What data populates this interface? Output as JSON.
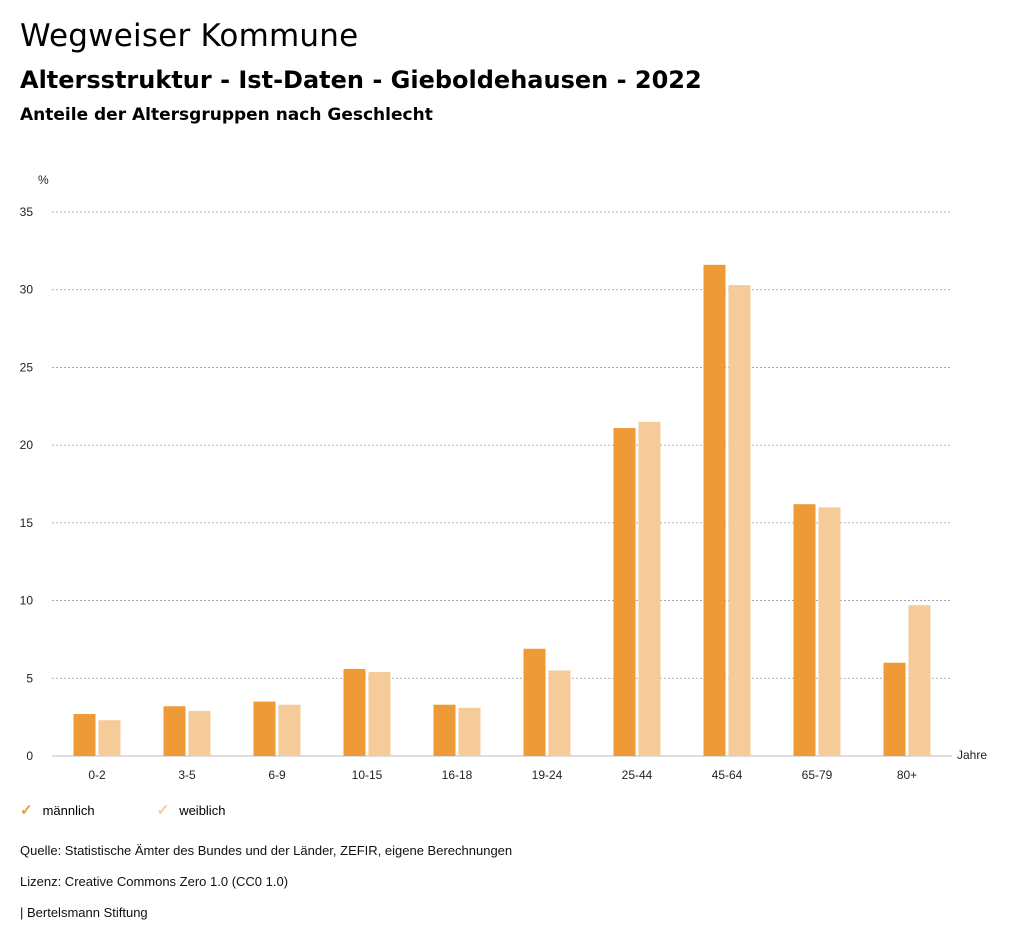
{
  "header": {
    "title": "Wegweiser Kommune",
    "subtitle": "Altersstruktur - Ist-Daten - Gieboldehausen - 2022",
    "description": "Anteile der Altersgruppen nach Geschlecht"
  },
  "chart_data": {
    "type": "bar",
    "ylabel": "%",
    "xlabel": "Jahre",
    "ylim": [
      0,
      35
    ],
    "yticks": [
      0,
      5,
      10,
      15,
      20,
      25,
      30,
      35
    ],
    "grid": true,
    "legend_position": "bottom-left",
    "categories": [
      "0-2",
      "3-5",
      "6-9",
      "10-15",
      "16-18",
      "19-24",
      "25-44",
      "45-64",
      "65-79",
      "80+"
    ],
    "series": [
      {
        "name": "männlich",
        "color": "#ED9A37",
        "values": [
          2.7,
          3.2,
          3.5,
          5.6,
          3.3,
          6.9,
          21.1,
          31.6,
          16.2,
          6.0
        ]
      },
      {
        "name": "weiblich",
        "color": "#F5CB9A",
        "values": [
          2.3,
          2.9,
          3.3,
          5.4,
          3.1,
          5.5,
          21.5,
          30.3,
          16.0,
          9.7
        ]
      }
    ]
  },
  "legend": {
    "items": [
      {
        "label": "männlich",
        "color": "#ED9A37"
      },
      {
        "label": "weiblich",
        "color": "#F5CB9A"
      }
    ]
  },
  "footer": {
    "source": "Quelle: Statistische Ämter des Bundes und der Länder, ZEFIR, eigene Berechnungen",
    "license": "Lizenz: Creative Commons Zero 1.0 (CC0 1.0)",
    "publisher": "| Bertelsmann Stiftung"
  }
}
